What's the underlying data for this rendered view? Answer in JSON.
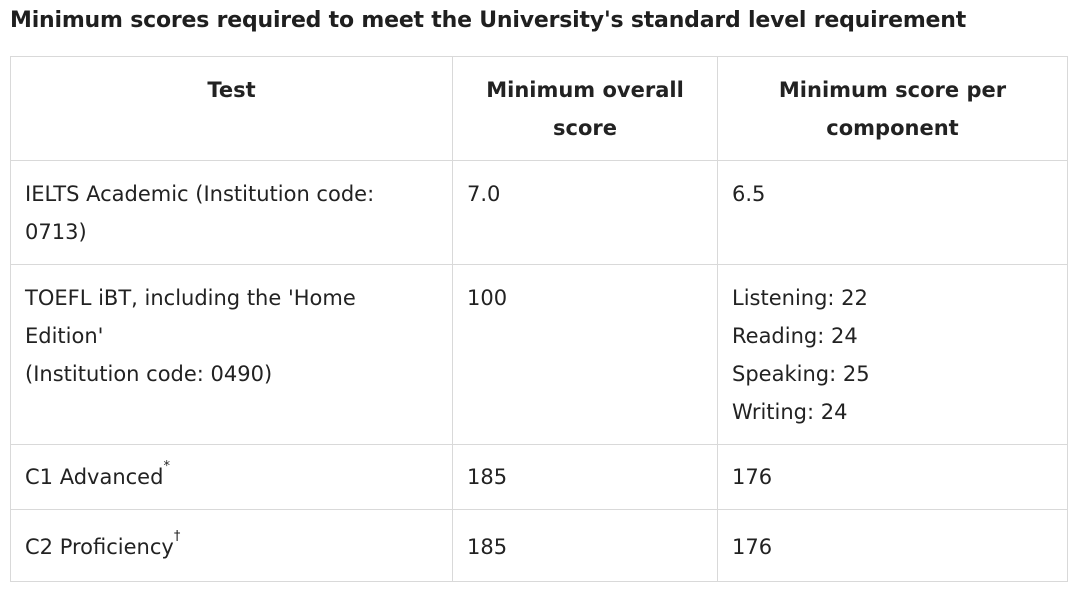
{
  "caption": "Minimum scores required to meet the University's standard level requirement",
  "table": {
    "headers": {
      "test": "Test",
      "overall": "Minimum overall score",
      "component": "Minimum score per component"
    },
    "rows": [
      {
        "test_lines": [
          "IELTS Academic (Institution code: 0713)"
        ],
        "overall": "7.0",
        "component_lines": [
          "6.5"
        ]
      },
      {
        "test_lines": [
          "TOEFL iBT, including the 'Home Edition'",
          "(Institution code: 0490)"
        ],
        "overall": "100",
        "component_lines": [
          "Listening: 22",
          "Reading: 24",
          "Speaking: 25",
          "Writing: 24"
        ]
      },
      {
        "test": "C1 Advanced",
        "test_mark": "*",
        "overall": "185",
        "component_lines": [
          "176"
        ]
      },
      {
        "test": "C2 Proficiency",
        "test_mark": "†",
        "overall": "185",
        "component_lines": [
          "176"
        ]
      }
    ]
  }
}
